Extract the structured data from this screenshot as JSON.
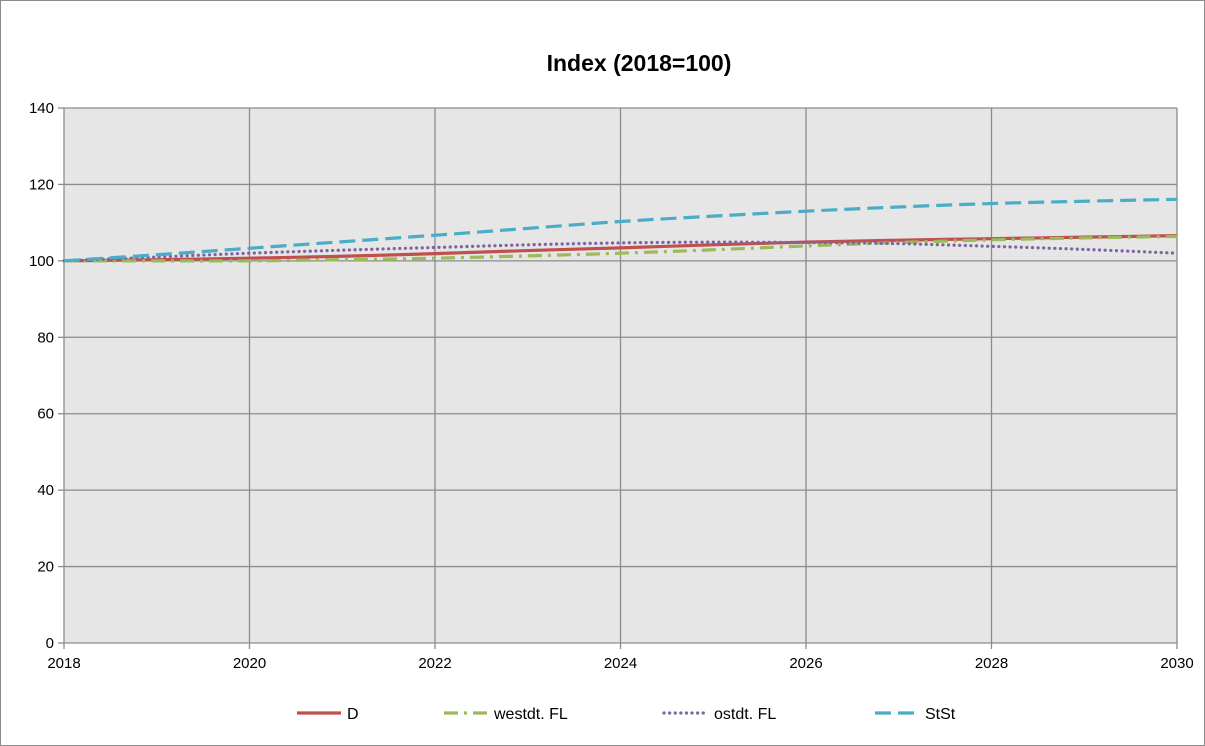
{
  "chart_data": {
    "type": "line",
    "title": "Index (2018=100)",
    "xlabel": "",
    "ylabel": "",
    "xlim": [
      2018,
      2030
    ],
    "ylim": [
      0,
      140
    ],
    "x_ticks": [
      "2018",
      "2020",
      "2022",
      "2024",
      "2026",
      "2028",
      "2030"
    ],
    "y_ticks": [
      "0",
      "20",
      "40",
      "60",
      "80",
      "100",
      "120",
      "140"
    ],
    "grid": true,
    "plot_background": "#e6e6e6",
    "grid_color": "#8c8c8c",
    "legend_position": "bottom",
    "x": [
      2018,
      2019,
      2020,
      2021,
      2022,
      2023,
      2024,
      2025,
      2026,
      2027,
      2028,
      2029,
      2030
    ],
    "series": [
      {
        "name": "D",
        "color": "#c0504d",
        "style": "solid",
        "values": [
          100,
          100.3,
          100.7,
          101.2,
          101.9,
          102.7,
          103.4,
          104.2,
          104.9,
          105.4,
          105.8,
          106.2,
          106.6
        ]
      },
      {
        "name": "westdt. FL",
        "color": "#9bbb59",
        "style": "dashdot",
        "values": [
          100,
          100,
          100,
          100.3,
          100.7,
          101.3,
          102.0,
          102.9,
          103.9,
          104.8,
          105.5,
          106.0,
          106.4
        ]
      },
      {
        "name": "ostdt. FL",
        "color": "#8064a2",
        "style": "dotted",
        "values": [
          100,
          101.0,
          102.0,
          102.8,
          103.5,
          104.2,
          104.7,
          104.9,
          104.8,
          104.5,
          103.8,
          103.0,
          102.0
        ]
      },
      {
        "name": "StSt",
        "color": "#4bacc6",
        "style": "dashed",
        "values": [
          100,
          101.6,
          103.3,
          105.0,
          106.7,
          108.5,
          110.3,
          111.7,
          113.0,
          114.1,
          115.0,
          115.6,
          116.1
        ]
      }
    ]
  }
}
